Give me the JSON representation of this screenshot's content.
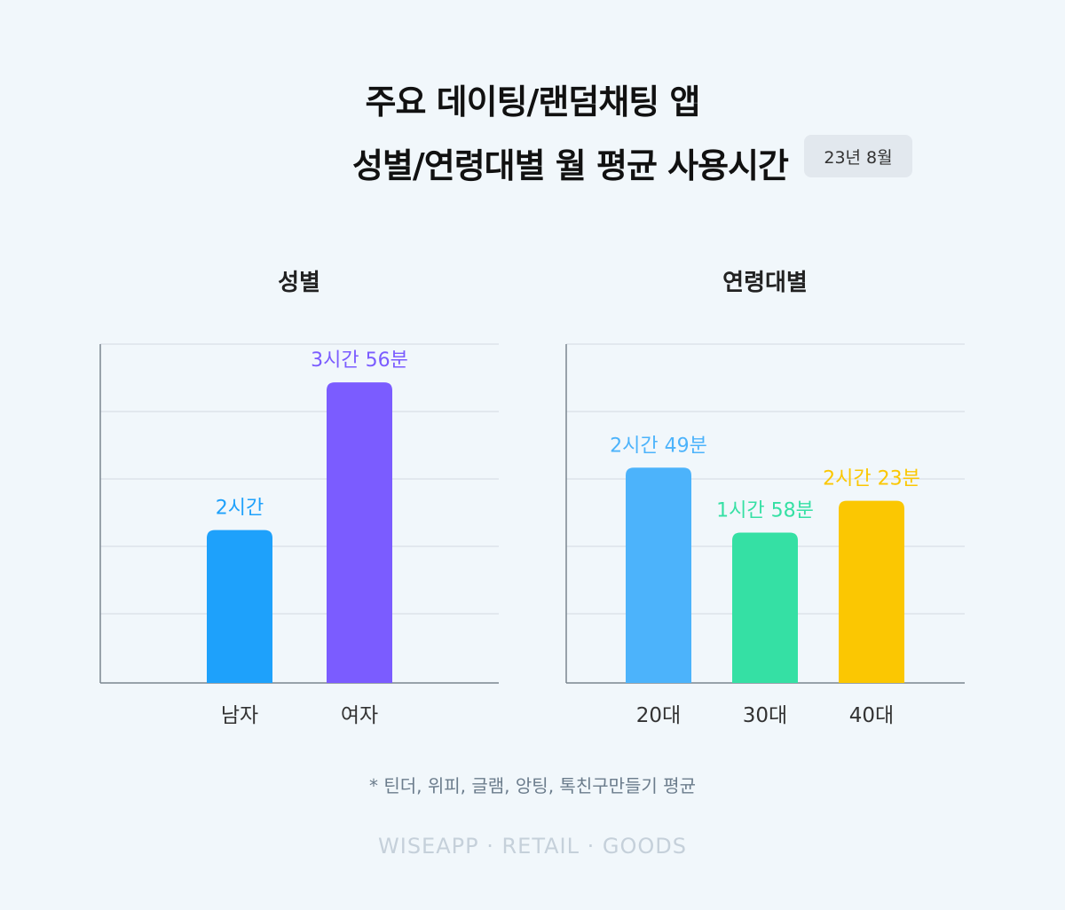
{
  "header": {
    "title_line1": "주요 데이팅/랜덤채팅 앱",
    "title_line2": "성별/연령대별 월 평균 사용시간",
    "date_badge": "23년 8월"
  },
  "chart_data": [
    {
      "type": "bar",
      "title": "성별",
      "categories": [
        "남자",
        "여자"
      ],
      "values_minutes": [
        120,
        236
      ],
      "data_labels": [
        "2시간",
        "3시간 56분"
      ],
      "colors": [
        "#1ea1fb",
        "#7b5cff"
      ],
      "gridlines": true
    },
    {
      "type": "bar",
      "title": "연령대별",
      "categories": [
        "20대",
        "30대",
        "40대"
      ],
      "values_minutes": [
        169,
        118,
        143
      ],
      "data_labels": [
        "2시간 49분",
        "1시간 58분",
        "2시간 23분"
      ],
      "colors": [
        "#4cb3fb",
        "#35e0a4",
        "#fbc702"
      ],
      "gridlines": true
    }
  ],
  "footnote": "* 틴더, 위피, 글램, 앙팅, 톡친구만들기 평균",
  "brand": "WISEAPP · RETAIL · GOODS"
}
